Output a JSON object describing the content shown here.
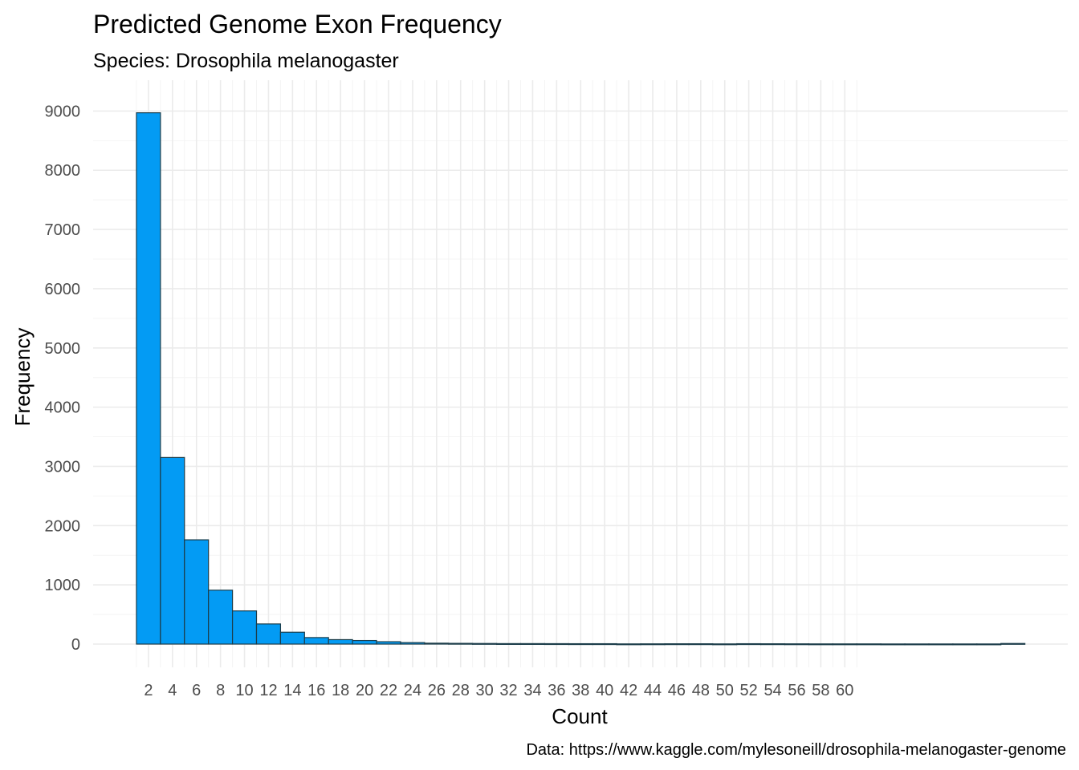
{
  "chart_data": {
    "type": "bar",
    "title": "Predicted Genome Exon Frequency",
    "subtitle": "Species: Drosophila melanogaster",
    "xlabel": "Count",
    "ylabel": "Frequency",
    "caption": "Data: https://www.kaggle.com/mylesoneill/drosophila-melanogaster-genome",
    "x_ticks": [
      2,
      4,
      6,
      8,
      10,
      12,
      14,
      16,
      18,
      20,
      22,
      24,
      26,
      28,
      30,
      32,
      34,
      36,
      38,
      40,
      42,
      44,
      46,
      48,
      50,
      52,
      54,
      56,
      58,
      60
    ],
    "y_ticks": [
      0,
      1000,
      2000,
      3000,
      4000,
      5000,
      6000,
      7000,
      8000,
      9000
    ],
    "ylim": [
      -380,
      9300
    ],
    "xlim": [
      0,
      79
    ],
    "bin_width": 2,
    "bins_start": [
      1,
      3,
      5,
      7,
      9,
      11,
      13,
      15,
      17,
      19,
      21,
      23,
      25,
      27,
      29,
      31,
      33,
      35,
      37,
      39,
      41,
      43,
      45,
      47,
      49,
      51,
      53,
      55,
      57,
      59,
      61,
      63,
      65,
      67,
      69,
      71,
      73
    ],
    "values": [
      8970,
      3150,
      1760,
      910,
      560,
      340,
      200,
      110,
      75,
      60,
      40,
      25,
      15,
      12,
      10,
      8,
      8,
      7,
      6,
      6,
      3,
      4,
      5,
      5,
      3,
      6,
      5,
      4,
      3,
      3,
      3,
      2,
      2,
      2,
      2,
      2,
      10
    ],
    "grid": true,
    "legend": "none",
    "colors": {
      "bar_fill": "#039BF4",
      "bar_stroke": "#1c3d4a",
      "grid_major": "#ebebeb",
      "grid_minor": "#f4f4f4"
    }
  }
}
